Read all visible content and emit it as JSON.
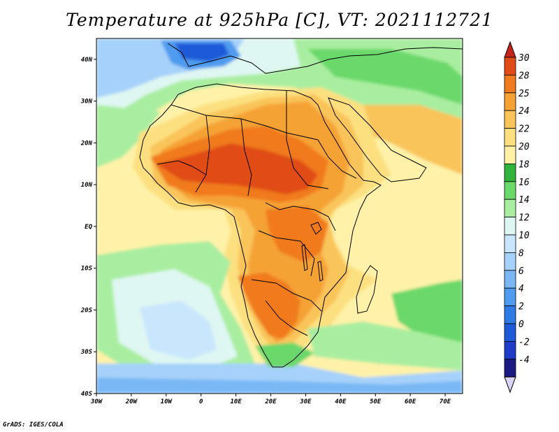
{
  "title": "Temperature at 925hPa [C], VT: 2021112721",
  "credit": "GrADS: IGES/COLA",
  "colors": {
    "n4": "#1a1a80",
    "n2": "#1e3cc8",
    "p0": "#1f5ad8",
    "p2": "#2f7ae6",
    "p4": "#4f9bef",
    "p6": "#79b8f5",
    "p8": "#a6d1fa",
    "p10": "#c9e6fd",
    "p12": "#dff7f2",
    "p14": "#a9eea0",
    "p16": "#6bd86a",
    "p18": "#30b43c",
    "p20": "#fff2a8",
    "p22": "#fce080",
    "p24": "#f9c45a",
    "p25": "#f5a234",
    "p28": "#f07a1e",
    "p30": "#e04c18",
    "p31": "#c4241a",
    "land_line": "#000000"
  },
  "chart_data": {
    "type": "heatmap",
    "title": "Temperature at 925hPa [C], VT: 2021112721",
    "variable": "Temperature at 925hPa",
    "units": "C",
    "valid_time": "2021112721",
    "xaxis": {
      "range": [
        -30,
        75
      ],
      "ticks": [
        {
          "value": -30,
          "label": "30W"
        },
        {
          "value": -20,
          "label": "20W"
        },
        {
          "value": -10,
          "label": "10W"
        },
        {
          "value": 0,
          "label": "0"
        },
        {
          "value": 10,
          "label": "10E"
        },
        {
          "value": 20,
          "label": "20E"
        },
        {
          "value": 30,
          "label": "30E"
        },
        {
          "value": 40,
          "label": "40E"
        },
        {
          "value": 50,
          "label": "50E"
        },
        {
          "value": 60,
          "label": "60E"
        },
        {
          "value": 70,
          "label": "70E"
        }
      ]
    },
    "yaxis": {
      "range": [
        -40,
        45
      ],
      "ticks": [
        {
          "value": 40,
          "label": "40N"
        },
        {
          "value": 30,
          "label": "30N"
        },
        {
          "value": 20,
          "label": "20N"
        },
        {
          "value": 10,
          "label": "10N"
        },
        {
          "value": 0,
          "label": "EQ"
        },
        {
          "value": -10,
          "label": "10S"
        },
        {
          "value": -20,
          "label": "20S"
        },
        {
          "value": -30,
          "label": "30S"
        },
        {
          "value": -40,
          "label": "40S"
        }
      ]
    },
    "colorbar": {
      "labels": [
        "30",
        "28",
        "25",
        "24",
        "22",
        "20",
        "18",
        "16",
        "14",
        "12",
        "10",
        "8",
        "6",
        "4",
        "2",
        "0",
        "-2",
        "-4"
      ],
      "colors": [
        "#e04c18",
        "#f07a1e",
        "#f5a234",
        "#f9c45a",
        "#fce080",
        "#fff2a8",
        "#30b43c",
        "#6bd86a",
        "#a9eea0",
        "#dff7f2",
        "#c9e6fd",
        "#a6d1fa",
        "#79b8f5",
        "#4f9bef",
        "#2f7ae6",
        "#1f5ad8",
        "#1e3cc8",
        "#1a1a80"
      ],
      "top_color": "#c4241a",
      "bottom_color": "#d9d4f6"
    }
  }
}
